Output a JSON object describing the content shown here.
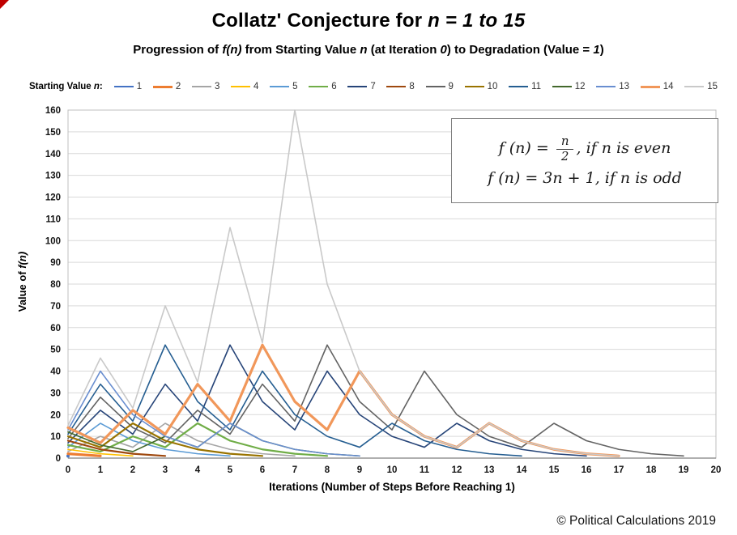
{
  "header": {
    "title_plain": "Collatz' Conjecture for ",
    "title_italic": "n = 1 to 15",
    "subtitle_parts": [
      "Progression of ",
      "f(n)",
      " from Starting Value ",
      "n",
      " (at Iteration ",
      "0",
      ") to Degradation (Value = ",
      "1",
      ")"
    ]
  },
  "legend": {
    "title_parts": [
      "Starting Value ",
      "n",
      ":"
    ]
  },
  "formula": {
    "l1_pre": "f (n) = ",
    "l1_num": "n",
    "l1_den": "2",
    "l1_post": ", if n is even",
    "l2": "f (n) = 3n + 1, if n is odd"
  },
  "axes": {
    "y_title_plain": "Value of ",
    "y_title_italic": "f(n)",
    "x_title": "Iterations (Number of Steps Before Reaching 1)"
  },
  "footer": {
    "copyright": "© Political Calculations 2019"
  },
  "chart_data": {
    "type": "line",
    "title": "Collatz' Conjecture for n = 1 to 15",
    "subtitle": "Progression of f(n) from Starting Value n (at Iteration 0) to Degradation (Value = 1)",
    "xlabel": "Iterations (Number of Steps Before Reaching 1)",
    "ylabel": "Value of f(n)",
    "xlim": [
      0,
      20
    ],
    "ylim": [
      0,
      160
    ],
    "x_tick_step": 1,
    "y_tick_step": 10,
    "grid": "horizontal",
    "legend_position": "top",
    "grid_color": "#D9D9D9",
    "border_color": "#BFBFBF",
    "axis_color": "#7F7F7F",
    "series": [
      {
        "name": "1",
        "color": "#4472C4",
        "width": 1.6,
        "values": [
          1
        ]
      },
      {
        "name": "2",
        "color": "#ED7D31",
        "width": 3.2,
        "values": [
          2,
          1
        ]
      },
      {
        "name": "3",
        "color": "#A5A5A5",
        "width": 1.6,
        "values": [
          3,
          10,
          5,
          16,
          8,
          4,
          2,
          1
        ]
      },
      {
        "name": "4",
        "color": "#FFC000",
        "width": 1.6,
        "values": [
          4,
          2,
          1
        ]
      },
      {
        "name": "5",
        "color": "#5B9BD5",
        "width": 1.6,
        "values": [
          5,
          16,
          8,
          4,
          2,
          1
        ]
      },
      {
        "name": "6",
        "color": "#70AD47",
        "width": 2.2,
        "values": [
          6,
          3,
          10,
          5,
          16,
          8,
          4,
          2,
          1
        ]
      },
      {
        "name": "7",
        "color": "#264478",
        "width": 1.6,
        "values": [
          7,
          22,
          11,
          34,
          17,
          52,
          26,
          13,
          40,
          20,
          10,
          5,
          16,
          8,
          4,
          2,
          1
        ]
      },
      {
        "name": "8",
        "color": "#9E480E",
        "width": 2.2,
        "values": [
          8,
          4,
          2,
          1
        ]
      },
      {
        "name": "9",
        "color": "#636363",
        "width": 1.6,
        "values": [
          9,
          28,
          14,
          7,
          22,
          11,
          34,
          17,
          52,
          26,
          13,
          40,
          20,
          10,
          5,
          16,
          8,
          4,
          2,
          1
        ]
      },
      {
        "name": "10",
        "color": "#997300",
        "width": 2.2,
        "values": [
          10,
          5,
          16,
          8,
          4,
          2,
          1
        ]
      },
      {
        "name": "11",
        "color": "#255E91",
        "width": 1.6,
        "values": [
          11,
          34,
          17,
          52,
          26,
          13,
          40,
          20,
          10,
          5,
          16,
          8,
          4,
          2,
          1
        ]
      },
      {
        "name": "12",
        "color": "#43682B",
        "width": 1.6,
        "values": [
          12,
          6,
          3,
          10,
          5,
          16,
          8,
          4,
          2,
          1
        ]
      },
      {
        "name": "13",
        "color": "#698ED0",
        "width": 1.6,
        "values": [
          13,
          40,
          20,
          10,
          5,
          16,
          8,
          4,
          2,
          1
        ]
      },
      {
        "name": "14",
        "color": "#F1975A",
        "width": 3.2,
        "values": [
          14,
          7,
          22,
          11,
          34,
          17,
          52,
          26,
          13,
          40,
          20,
          10,
          5,
          16,
          8,
          4,
          2,
          1
        ]
      },
      {
        "name": "15",
        "color": "#C9C9C9",
        "width": 1.6,
        "values": [
          15,
          46,
          23,
          70,
          35,
          106,
          53,
          160,
          80,
          40,
          20,
          10,
          5,
          16,
          8,
          4,
          2,
          1
        ]
      }
    ]
  }
}
